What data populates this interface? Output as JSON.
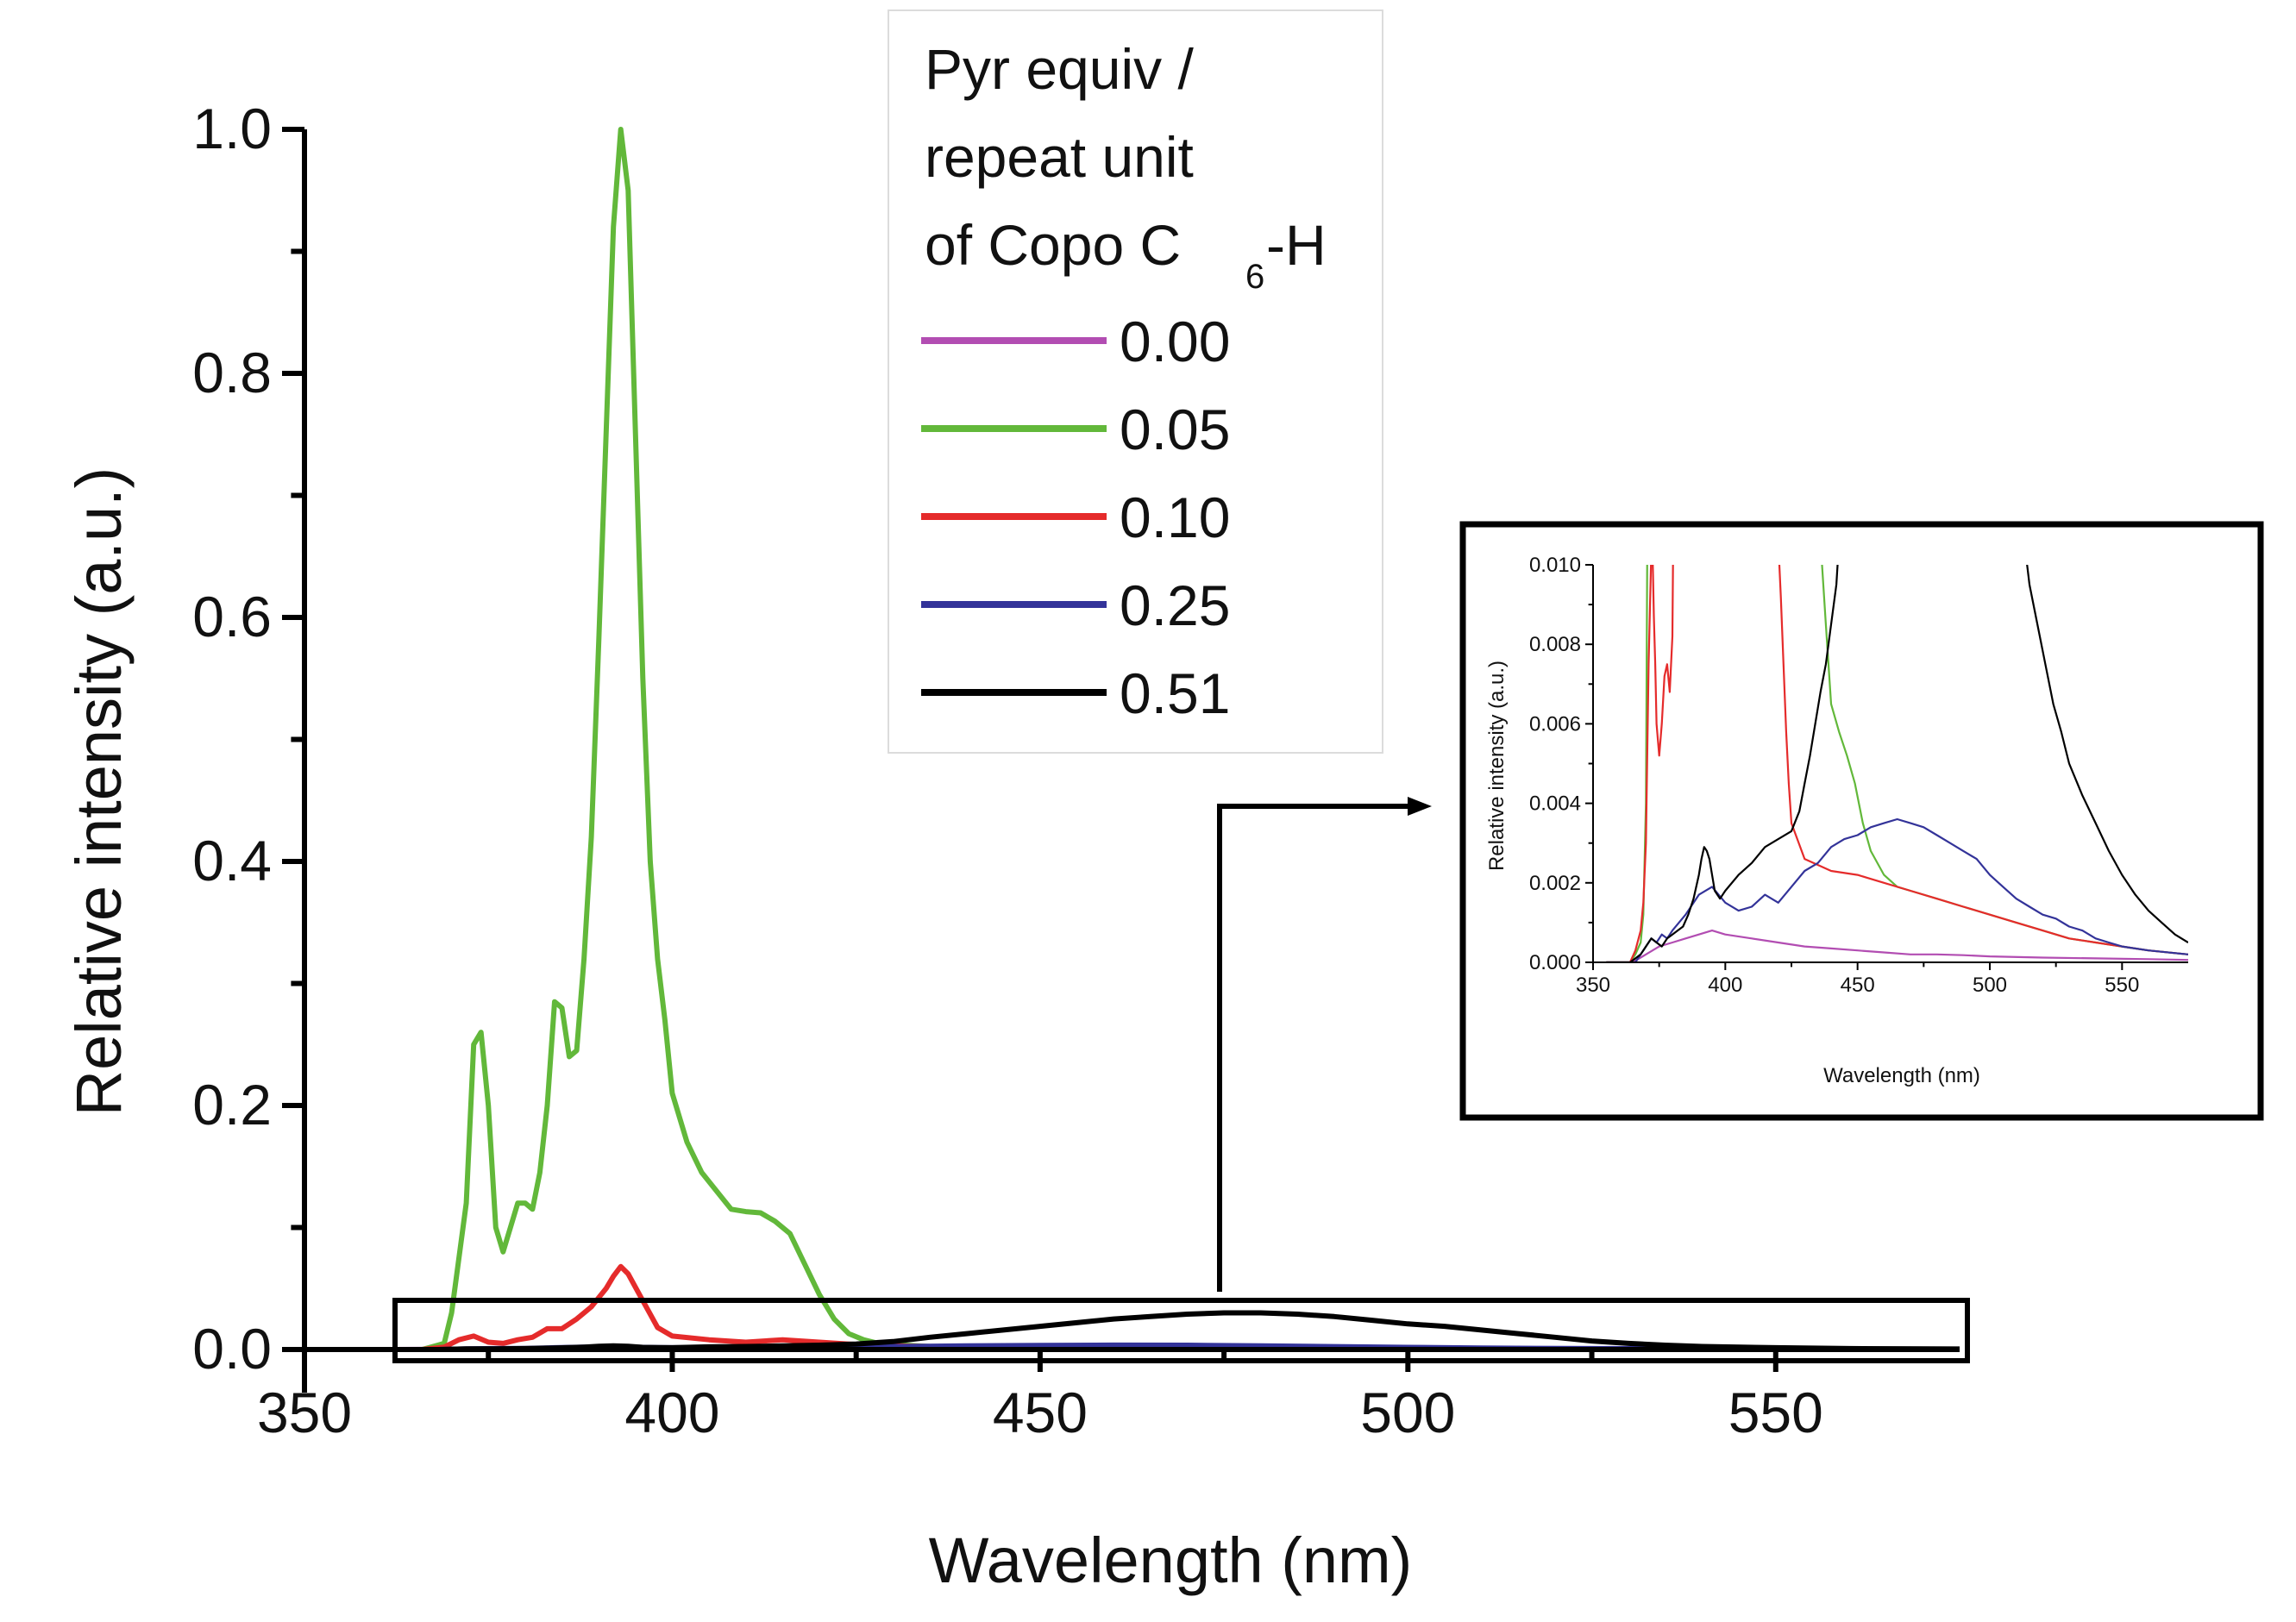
{
  "chart_data": [
    {
      "id": "main",
      "type": "line",
      "title": "",
      "xlabel": "Wavelength (nm)",
      "ylabel": "Relative intensity (a.u.)",
      "xlim": [
        350,
        575
      ],
      "ylim": [
        0,
        1.0
      ],
      "xticks": [
        "350",
        "400",
        "450",
        "500",
        "550"
      ],
      "xtick_values": [
        350,
        400,
        450,
        500,
        550
      ],
      "yticks": [
        "0.0",
        "0.2",
        "0.4",
        "0.6",
        "0.8",
        "1.0"
      ],
      "ytick_values": [
        0,
        0.2,
        0.4,
        0.6,
        0.8,
        1.0
      ],
      "legend": {
        "title_lines": [
          "Pyr equiv /",
          "repeat unit",
          "of Copo C"
        ],
        "title_subscript": "6",
        "title_suffix": "-H",
        "placement": "top-center"
      },
      "series": [
        {
          "name": "0.00",
          "color": "#b24db2",
          "x": [
            362,
            380,
            400,
            450,
            500,
            575
          ],
          "y": [
            0,
            0.0004,
            0.0008,
            0.0004,
            0.0002,
            0.0001
          ]
        },
        {
          "name": "0.05",
          "color": "#62b83a",
          "x": [
            362,
            366,
            369,
            370,
            372,
            373,
            374,
            375,
            376,
            377,
            378,
            379,
            380,
            381,
            382,
            383,
            384,
            385,
            386,
            387,
            388,
            389,
            390,
            391,
            392,
            393,
            394,
            395,
            396,
            397,
            398,
            399,
            400,
            402,
            404,
            406,
            408,
            410,
            412,
            414,
            416,
            418,
            420,
            422,
            424,
            426,
            428,
            430,
            435,
            440,
            450,
            460,
            475,
            500,
            525,
            550,
            575
          ],
          "y": [
            0,
            0,
            0.005,
            0.03,
            0.12,
            0.25,
            0.26,
            0.2,
            0.1,
            0.08,
            0.1,
            0.12,
            0.12,
            0.115,
            0.145,
            0.2,
            0.285,
            0.28,
            0.24,
            0.245,
            0.32,
            0.42,
            0.58,
            0.75,
            0.92,
            1.0,
            0.95,
            0.75,
            0.55,
            0.4,
            0.32,
            0.27,
            0.21,
            0.17,
            0.145,
            0.13,
            0.115,
            0.113,
            0.112,
            0.105,
            0.095,
            0.07,
            0.045,
            0.025,
            0.013,
            0.008,
            0.005,
            0.004,
            0.0025,
            0.002,
            0.0015,
            0.001,
            0.0008,
            0.0005,
            0.0003,
            0.0002,
            0.0001
          ]
        },
        {
          "name": "0.10",
          "color": "#e52b2b",
          "x": [
            362,
            366,
            369,
            371,
            373,
            375,
            377,
            379,
            381,
            383,
            385,
            387,
            389,
            391,
            392,
            393,
            394,
            396,
            398,
            400,
            405,
            410,
            415,
            420,
            425,
            430,
            440,
            450,
            460,
            470,
            480,
            500,
            525,
            550,
            575
          ],
          "y": [
            0,
            0,
            0.002,
            0.008,
            0.011,
            0.006,
            0.005,
            0.008,
            0.01,
            0.017,
            0.017,
            0.025,
            0.035,
            0.05,
            0.06,
            0.068,
            0.062,
            0.04,
            0.018,
            0.011,
            0.008,
            0.006,
            0.008,
            0.006,
            0.004,
            0.003,
            0.002,
            0.0017,
            0.0015,
            0.0012,
            0.001,
            0.0006,
            0.0003,
            0.0002,
            0.0001
          ]
        },
        {
          "name": "0.25",
          "color": "#333399",
          "x": [
            362,
            368,
            372,
            376,
            380,
            384,
            388,
            392,
            396,
            400,
            405,
            410,
            415,
            420,
            430,
            440,
            450,
            460,
            470,
            480,
            490,
            500,
            510,
            525,
            550,
            575
          ],
          "y": [
            0,
            0,
            0.0005,
            0.0008,
            0.0009,
            0.0015,
            0.002,
            0.0022,
            0.0018,
            0.0015,
            0.0014,
            0.0016,
            0.0018,
            0.002,
            0.0024,
            0.003,
            0.0034,
            0.0036,
            0.0035,
            0.003,
            0.0024,
            0.0018,
            0.0012,
            0.0008,
            0.0004,
            0.0002
          ]
        },
        {
          "name": "0.51",
          "color": "#000000",
          "x": [
            362,
            368,
            372,
            376,
            380,
            384,
            388,
            390,
            392,
            394,
            396,
            400,
            405,
            410,
            415,
            420,
            425,
            430,
            435,
            440,
            445,
            450,
            455,
            460,
            465,
            470,
            475,
            480,
            485,
            490,
            495,
            500,
            505,
            510,
            515,
            520,
            525,
            530,
            535,
            540,
            550,
            560,
            575
          ],
          "y": [
            0,
            0,
            0.0005,
            0.0006,
            0.0008,
            0.0012,
            0.002,
            0.0026,
            0.003,
            0.0026,
            0.0018,
            0.0015,
            0.0022,
            0.0025,
            0.003,
            0.0035,
            0.0045,
            0.0065,
            0.01,
            0.013,
            0.016,
            0.019,
            0.022,
            0.025,
            0.027,
            0.029,
            0.03,
            0.03,
            0.029,
            0.027,
            0.024,
            0.021,
            0.019,
            0.016,
            0.013,
            0.01,
            0.007,
            0.005,
            0.0035,
            0.0025,
            0.0015,
            0.0008,
            0.0004
          ]
        }
      ]
    },
    {
      "id": "inset",
      "type": "line",
      "title": "",
      "xlabel": "Wavelength (nm)",
      "ylabel": "Relative intensity (a.u.)",
      "xlim": [
        350,
        575
      ],
      "ylim": [
        0,
        0.01
      ],
      "xticks": [
        "350",
        "400",
        "450",
        "500",
        "550"
      ],
      "xtick_values": [
        350,
        400,
        450,
        500,
        550
      ],
      "yticks": [
        "0.000",
        "0.002",
        "0.004",
        "0.006",
        "0.008",
        "0.010"
      ],
      "ytick_values": [
        0,
        0.002,
        0.004,
        0.006,
        0.008,
        0.01
      ],
      "series": [
        {
          "name": "0.00",
          "color": "#b24db2",
          "x": [
            355,
            365,
            370,
            375,
            380,
            385,
            390,
            395,
            400,
            410,
            420,
            430,
            440,
            450,
            460,
            470,
            480,
            490,
            500,
            520,
            540,
            560,
            575
          ],
          "y": [
            0,
            0,
            0.0002,
            0.0004,
            0.0005,
            0.0006,
            0.0007,
            0.0008,
            0.0007,
            0.0006,
            0.0005,
            0.0004,
            0.00035,
            0.0003,
            0.00025,
            0.0002,
            0.0002,
            0.00018,
            0.00015,
            0.00012,
            0.0001,
            8e-05,
            6e-05
          ]
        },
        {
          "name": "0.05",
          "color": "#62b83a",
          "x": [
            355,
            364,
            366,
            368,
            369,
            370,
            370.5,
            436,
            438,
            440,
            443,
            446,
            449,
            452,
            455,
            460,
            465,
            470,
            480,
            490,
            500,
            510,
            520,
            530,
            540,
            550,
            560,
            575
          ],
          "y": [
            0,
            0,
            0.0002,
            0.0005,
            0.0012,
            0.004,
            0.0106,
            0.0106,
            0.0085,
            0.0065,
            0.0058,
            0.0052,
            0.0045,
            0.0035,
            0.0028,
            0.0022,
            0.0019,
            0.0018,
            0.0016,
            0.0014,
            0.0012,
            0.001,
            0.0008,
            0.0006,
            0.0005,
            0.0004,
            0.0003,
            0.0002
          ]
        },
        {
          "name": "0.10",
          "color": "#e52b2b",
          "x": [
            355,
            364,
            366,
            368,
            369,
            370,
            371,
            372,
            372.5,
            373,
            373.5,
            374,
            375,
            376,
            377,
            378,
            379,
            380,
            380.3,
            420,
            421,
            422,
            423,
            424,
            425,
            430,
            440,
            450,
            460,
            470,
            480,
            490,
            500,
            510,
            520,
            530,
            540,
            550,
            560,
            575
          ],
          "y": [
            0,
            0,
            0.0003,
            0.0008,
            0.0015,
            0.003,
            0.0075,
            0.0103,
            0.0103,
            0.0087,
            0.0075,
            0.006,
            0.0052,
            0.006,
            0.0072,
            0.0075,
            0.0068,
            0.0082,
            0.0106,
            0.0106,
            0.0092,
            0.0075,
            0.0058,
            0.0045,
            0.0035,
            0.0026,
            0.0023,
            0.0022,
            0.002,
            0.0018,
            0.0016,
            0.0014,
            0.0012,
            0.001,
            0.0008,
            0.0006,
            0.0005,
            0.0004,
            0.0003,
            0.0002
          ]
        },
        {
          "name": "0.25",
          "color": "#333399",
          "x": [
            355,
            366,
            370,
            372,
            374,
            376,
            378,
            380,
            385,
            390,
            395,
            400,
            405,
            410,
            415,
            420,
            425,
            430,
            435,
            440,
            445,
            450,
            455,
            460,
            465,
            470,
            475,
            480,
            485,
            490,
            495,
            500,
            505,
            510,
            515,
            520,
            525,
            530,
            535,
            540,
            545,
            550,
            560,
            575
          ],
          "y": [
            0,
            0,
            0.0004,
            0.0006,
            0.0005,
            0.0007,
            0.0006,
            0.0008,
            0.0012,
            0.0017,
            0.0019,
            0.0015,
            0.0013,
            0.0014,
            0.0017,
            0.0015,
            0.0019,
            0.0023,
            0.0025,
            0.0029,
            0.0031,
            0.0032,
            0.0034,
            0.0035,
            0.0036,
            0.0035,
            0.0034,
            0.0032,
            0.003,
            0.0028,
            0.0026,
            0.0022,
            0.0019,
            0.0016,
            0.0014,
            0.0012,
            0.0011,
            0.0009,
            0.0008,
            0.0006,
            0.0005,
            0.0004,
            0.0003,
            0.0002
          ]
        },
        {
          "name": "0.51",
          "color": "#000000",
          "x": [
            355,
            364,
            366,
            368,
            370,
            372,
            374,
            376,
            378,
            380,
            382,
            384,
            386,
            388,
            390,
            391,
            392,
            393,
            394,
            395,
            396,
            398,
            400,
            405,
            410,
            415,
            420,
            425,
            428,
            430,
            432,
            434,
            436,
            438,
            440,
            442,
            443,
            513,
            515,
            518,
            521,
            524,
            527,
            530,
            535,
            540,
            545,
            550,
            555,
            560,
            565,
            570,
            575
          ],
          "y": [
            0,
            0,
            0.0001,
            0.0002,
            0.0004,
            0.0006,
            0.0005,
            0.0004,
            0.0006,
            0.0007,
            0.0008,
            0.0009,
            0.0012,
            0.0016,
            0.0022,
            0.0026,
            0.0029,
            0.0028,
            0.0026,
            0.0022,
            0.0018,
            0.0016,
            0.0018,
            0.0022,
            0.0025,
            0.0029,
            0.0031,
            0.0033,
            0.0038,
            0.0045,
            0.0052,
            0.006,
            0.0068,
            0.0075,
            0.0085,
            0.0095,
            0.0106,
            0.0106,
            0.0095,
            0.0085,
            0.0075,
            0.0065,
            0.0058,
            0.005,
            0.0042,
            0.0035,
            0.0028,
            0.0022,
            0.0017,
            0.0013,
            0.001,
            0.0007,
            0.0005
          ]
        }
      ]
    }
  ]
}
